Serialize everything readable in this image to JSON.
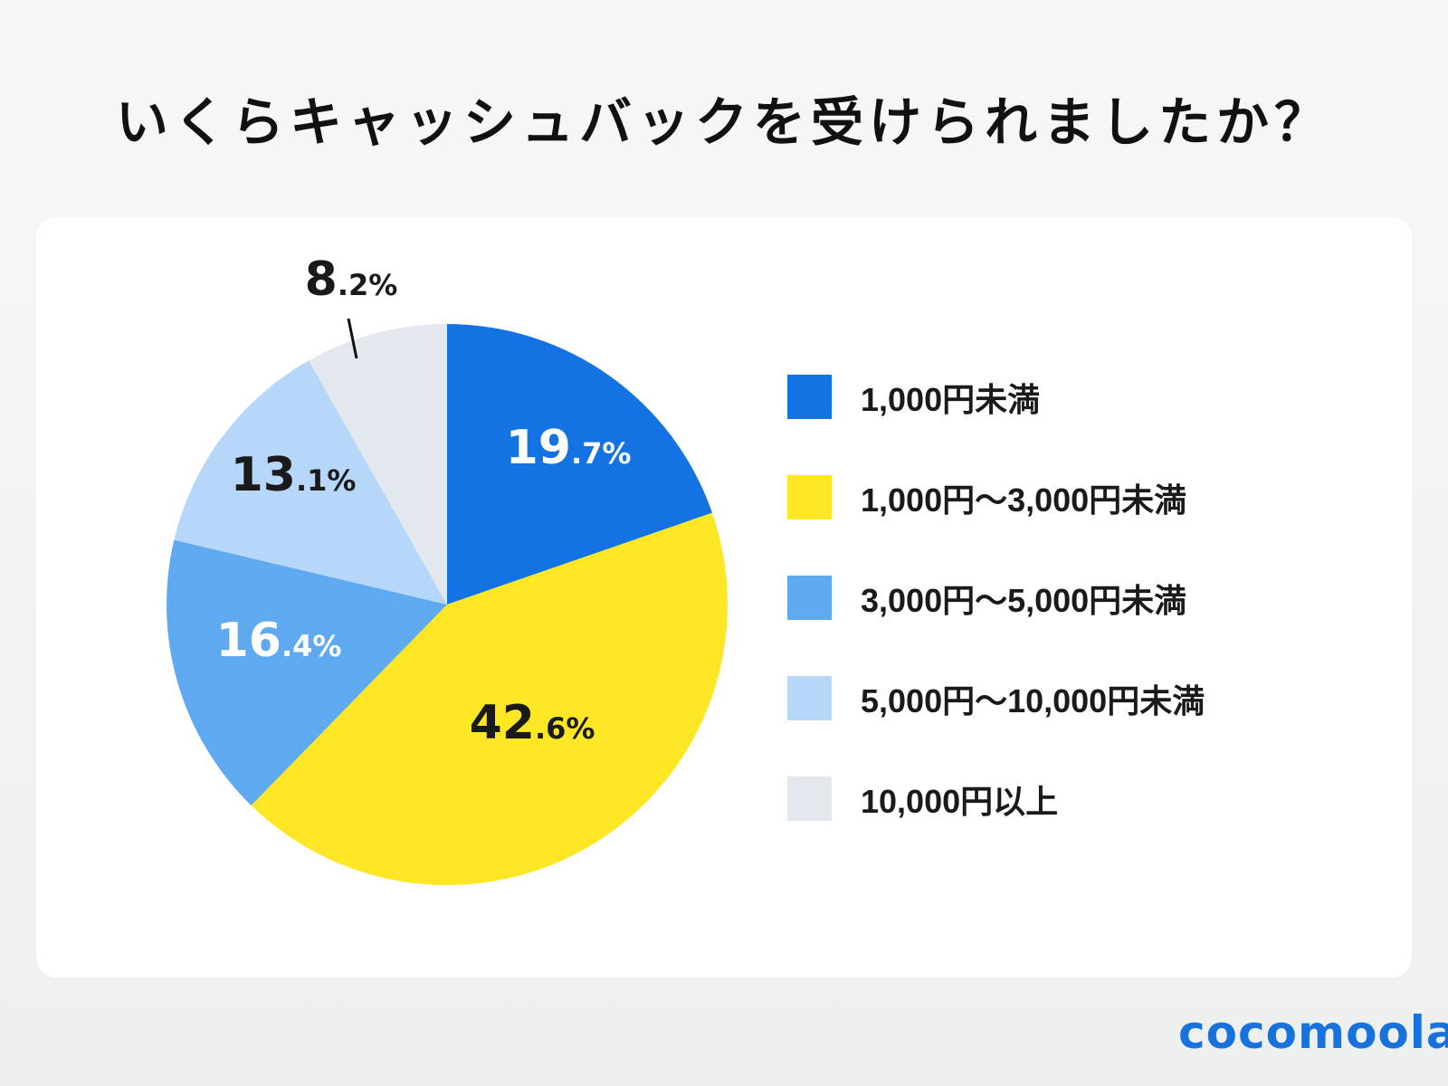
{
  "title": "いくらキャッシュバックを受けられましたか？",
  "logo": "cocomoola",
  "chart_data": {
    "type": "pie",
    "title": "いくらキャッシュバックを受けられましたか？",
    "start": "12 o'clock, clockwise",
    "legend_position": "right",
    "slices": [
      {
        "label": "1,000円未満",
        "value": 19.7,
        "display": "19.7%",
        "color": "#1373e3",
        "text_color": "#ffffff"
      },
      {
        "label": "1,000円〜3,000円未満",
        "value": 42.6,
        "display": "42.6%",
        "color": "#fde724",
        "text_color": "#1a1a1a"
      },
      {
        "label": "3,000円〜5,000円未満",
        "value": 16.4,
        "display": "16.4%",
        "color": "#5ea9f0",
        "text_color": "#ffffff"
      },
      {
        "label": "5,000円〜10,000円未満",
        "value": 13.1,
        "display": "13.1%",
        "color": "#b6d6fa",
        "text_color": "#1a1a1a"
      },
      {
        "label": "10,000円以上",
        "value": 8.2,
        "display": "8.2%",
        "color": "#e3e8ef",
        "text_color": "#1a1a1a"
      }
    ]
  }
}
